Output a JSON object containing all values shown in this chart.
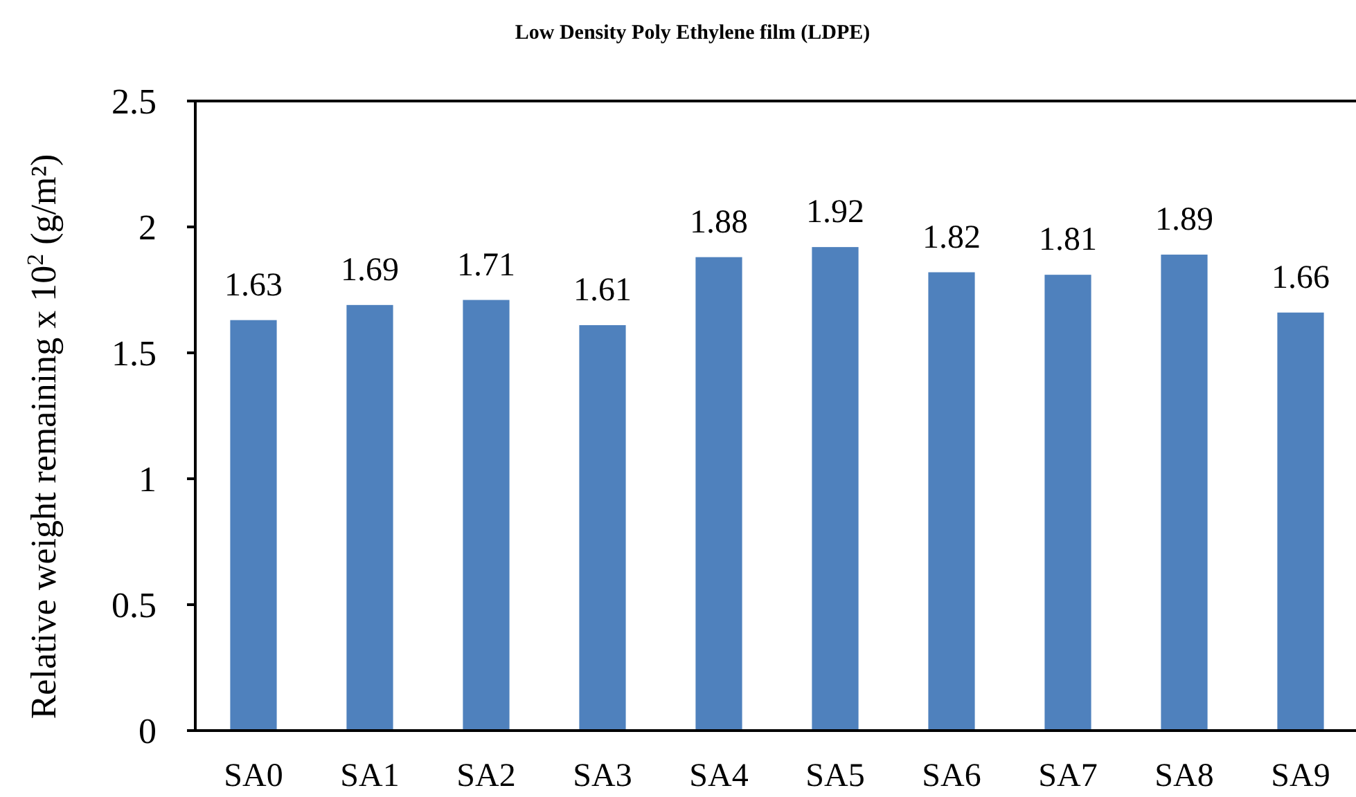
{
  "chart_data": {
    "type": "bar",
    "title": "Low Density Poly Ethylene film (LDPE)",
    "ylabel": "Relative weight remaining x 10$^{2}$ (g/m²)",
    "categories": [
      "SA0",
      "SA1",
      "SA2",
      "SA3",
      "SA4",
      "SA5",
      "SA6",
      "SA7",
      "SA8",
      "SA9"
    ],
    "values": [
      1.63,
      1.69,
      1.71,
      1.61,
      1.88,
      1.92,
      1.82,
      1.81,
      1.89,
      1.66
    ],
    "color": "#4f81bd",
    "ylim": [
      0,
      2.5
    ],
    "yticks": [
      0,
      0.5,
      1,
      1.5,
      2,
      2.5
    ],
    "data_labels": true,
    "grid": false
  }
}
